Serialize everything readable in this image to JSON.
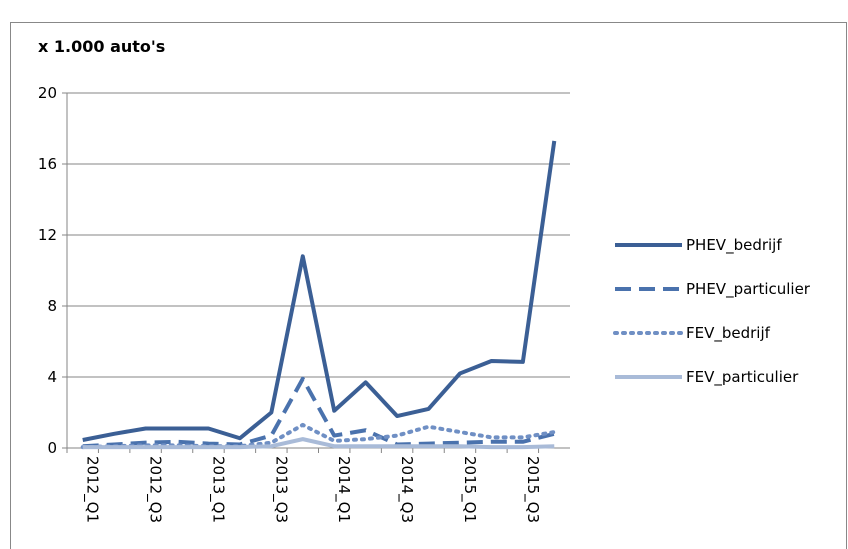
{
  "chart_data": {
    "type": "line",
    "y_axis_label": "x 1.000 auto's",
    "categories": [
      "2012_Q1",
      null,
      "2012_Q3",
      null,
      "2013_Q1",
      null,
      "2013_Q3",
      null,
      "2014_Q1",
      null,
      "2014_Q3",
      null,
      "2015_Q1",
      null,
      "2015_Q3",
      null
    ],
    "series": [
      {
        "name": "PHEV_bedrijf",
        "color": "#3b5f95",
        "style": "solid",
        "values": [
          0.45,
          0.8,
          1.1,
          1.1,
          1.1,
          0.55,
          2.0,
          10.8,
          2.1,
          3.7,
          1.8,
          2.2,
          4.2,
          4.9,
          4.85,
          17.3
        ]
      },
      {
        "name": "PHEV_particulier",
        "color": "#4a72ad",
        "style": "dashed",
        "values": [
          0.1,
          0.2,
          0.3,
          0.35,
          0.25,
          0.2,
          0.7,
          3.9,
          0.7,
          1.0,
          0.2,
          0.25,
          0.3,
          0.35,
          0.35,
          0.8
        ]
      },
      {
        "name": "FEV_bedrijf",
        "color": "#6f8fc4",
        "style": "dotted",
        "values": [
          0.05,
          0.1,
          0.15,
          0.15,
          0.1,
          0.1,
          0.3,
          1.3,
          0.4,
          0.5,
          0.7,
          1.2,
          0.9,
          0.6,
          0.6,
          0.9
        ]
      },
      {
        "name": "FEV_particulier",
        "color": "#a9bbd8",
        "style": "solid",
        "values": [
          0.05,
          0.05,
          0.05,
          0.05,
          0.05,
          0.05,
          0.1,
          0.5,
          0.1,
          0.1,
          0.1,
          0.1,
          0.1,
          0.05,
          0.05,
          0.1
        ]
      }
    ],
    "ylim": [
      0,
      20
    ],
    "yticks": [
      0,
      4,
      8,
      12,
      16,
      20
    ],
    "grid": true,
    "legend": "right"
  }
}
